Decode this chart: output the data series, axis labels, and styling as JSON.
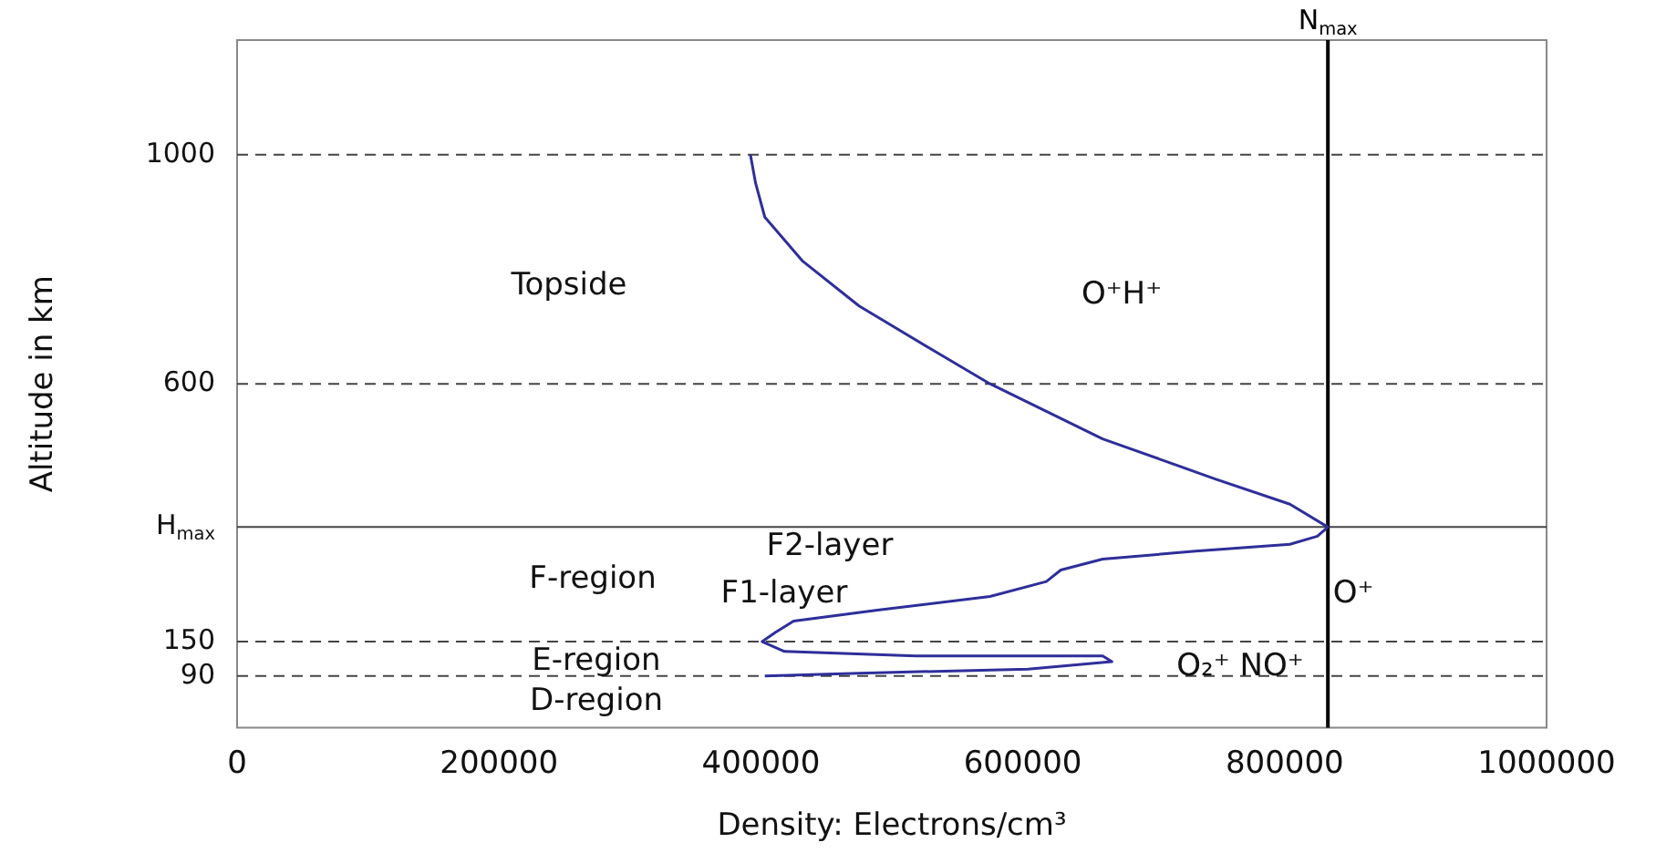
{
  "chart_data": {
    "type": "line",
    "xlabel": "Density: Electrons/cm³",
    "ylabel": "Altitude in km",
    "xlim": [
      0,
      1000000
    ],
    "xticks": [
      0,
      200000,
      400000,
      600000,
      800000,
      1000000
    ],
    "ylim": [
      0,
      1200
    ],
    "yticks": [
      90,
      150,
      {
        "value": 350,
        "label": "H$_{max}$"
      },
      600,
      1000
    ],
    "grid": false,
    "legend": false,
    "marker": "none",
    "line_style": "solid",
    "series": [
      {
        "color": "#2e2e9a",
        "x": [
          392000,
          396000,
          403000,
          432000,
          475000,
          532000,
          575000,
          661000,
          747000,
          804000,
          833000,
          825000,
          804000,
          732000,
          661000,
          629000,
          618000,
          575000,
          489000,
          425000,
          411000,
          401000,
          418000,
          518000,
          661000,
          668000,
          604000,
          475000,
          403000
        ],
        "values": [
          1000,
          950,
          891,
          814,
          736,
          658,
          600,
          504,
          434,
          390,
          350,
          334,
          320,
          308,
          294,
          275,
          255,
          229,
          205,
          186,
          166,
          150,
          133,
          125,
          125,
          115,
          102,
          95,
          90
        ]
      }
    ],
    "ref_lines": [
      {
        "axis": "y",
        "value": 1000,
        "line_style": "dashed",
        "color": "#444444"
      },
      {
        "axis": "y",
        "value": 600,
        "line_style": "dashed",
        "color": "#444444"
      },
      {
        "axis": "y",
        "value": 150,
        "line_style": "dashed",
        "color": "#444444"
      },
      {
        "axis": "y",
        "value": 90,
        "line_style": "dashed",
        "color": "#444444"
      },
      {
        "axis": "y",
        "value": 350,
        "line_style": "solid",
        "color": "#444444"
      },
      {
        "axis": "x",
        "value": 833000,
        "label": "N$_{max}$",
        "line_style": "solid",
        "color": "#000000"
      }
    ],
    "annotations": [
      "Topside",
      "O⁺H⁺",
      "F2-layer",
      "F-region",
      "F1-layer",
      "O⁺",
      "E-region",
      "O₂⁺ NO⁺",
      "D-region"
    ]
  }
}
